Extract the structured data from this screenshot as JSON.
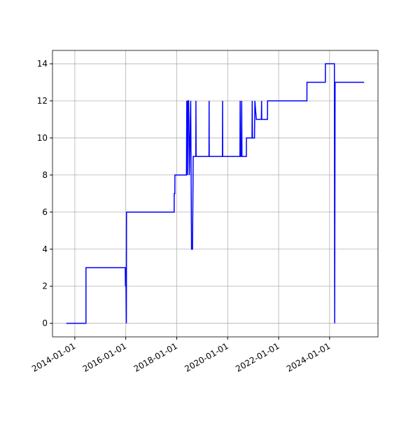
{
  "chart_data": {
    "type": "line",
    "x": [
      "2013-09-01",
      "2014-06-10",
      "2014-06-10",
      "2015-12-25",
      "2015-12-28",
      "2016-01-02",
      "2016-01-10",
      "2016-01-12",
      "2017-11-25",
      "2017-11-26",
      "2017-12-05",
      "2017-12-06",
      "2018-05-20",
      "2018-05-25",
      "2018-06-05",
      "2018-06-10",
      "2018-06-20",
      "2018-07-01",
      "2018-07-20",
      "2018-08-01",
      "2018-08-15",
      "2018-08-25",
      "2018-10-01",
      "2018-10-03",
      "2018-10-06",
      "2019-04-08",
      "2019-04-10",
      "2019-04-12",
      "2019-10-18",
      "2019-10-20",
      "2019-10-22",
      "2020-06-25",
      "2020-06-28",
      "2020-07-02",
      "2020-07-15",
      "2020-07-20",
      "2020-07-24",
      "2020-09-25",
      "2020-09-26",
      "2020-12-15",
      "2020-12-18",
      "2020-12-22",
      "2021-01-20",
      "2021-01-25",
      "2021-02-15",
      "2021-02-16",
      "2021-04-28",
      "2021-05-01",
      "2021-05-04",
      "2021-07-25",
      "2021-07-26",
      "2023-02-10",
      "2023-02-11",
      "2023-11-01",
      "2023-11-02",
      "2024-03-10",
      "2024-03-14",
      "2024-03-20",
      "2025-05-10"
    ],
    "series": [
      {
        "color": "#0000ff",
        "values": [
          0,
          0,
          3,
          3,
          2,
          3,
          0,
          6,
          6,
          7,
          7,
          8,
          8,
          12,
          8,
          12,
          12,
          8,
          12,
          4,
          4,
          9,
          9,
          12,
          9,
          9,
          12,
          9,
          9,
          12,
          9,
          9,
          12,
          9,
          9,
          12,
          9,
          9,
          10,
          10,
          12,
          10,
          10,
          12,
          11,
          11,
          11,
          12,
          11,
          11,
          12,
          12,
          13,
          13,
          14,
          14,
          0,
          13,
          13
        ]
      }
    ],
    "xlim": [
      "2013-02-15",
      "2025-11-25"
    ],
    "xticks": [
      "2014-01-01",
      "2016-01-01",
      "2018-01-01",
      "2020-01-01",
      "2022-01-01",
      "2024-01-01"
    ],
    "ylim": [
      -0.73,
      14.72
    ],
    "yticks": [
      0,
      2,
      4,
      6,
      8,
      10,
      12,
      14
    ],
    "grid": true
  }
}
